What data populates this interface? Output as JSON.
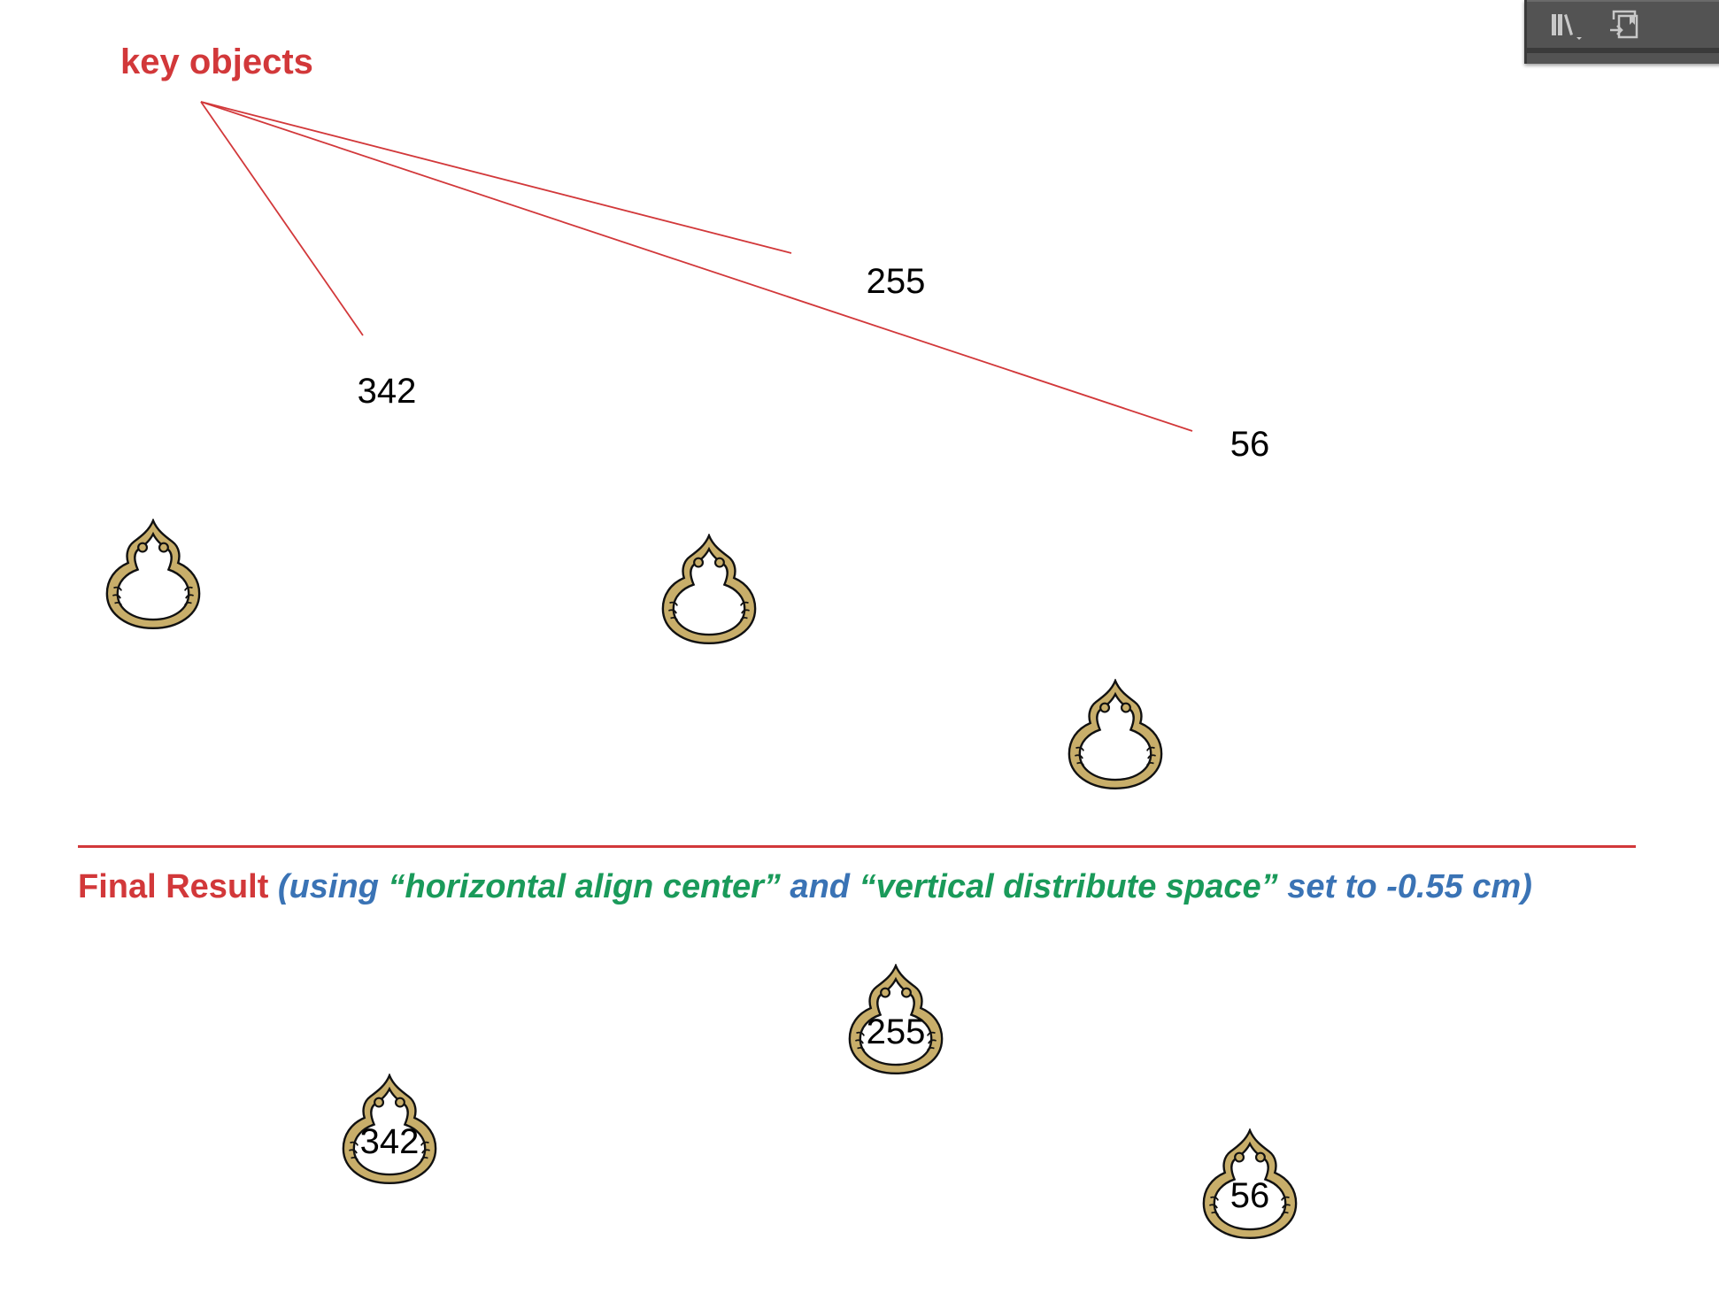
{
  "toolbar": {
    "icons": [
      "library-icon",
      "place-embed-icon"
    ]
  },
  "annotation": {
    "title": "key objects",
    "color": "#d2383a"
  },
  "labels": {
    "a": "255",
    "b": "342",
    "c": "56"
  },
  "result": {
    "prefix": "Final Result",
    "p1": " (using ",
    "q1": "“horizontal align center”",
    "p2": " and ",
    "q2": "“vertical distribute space”",
    "p3": " set to -0.55 cm)"
  },
  "colors": {
    "red": "#d2383a",
    "blue": "#3a73b5",
    "green": "#1a9a5a",
    "ornament_gold": "#c8ae6a"
  }
}
